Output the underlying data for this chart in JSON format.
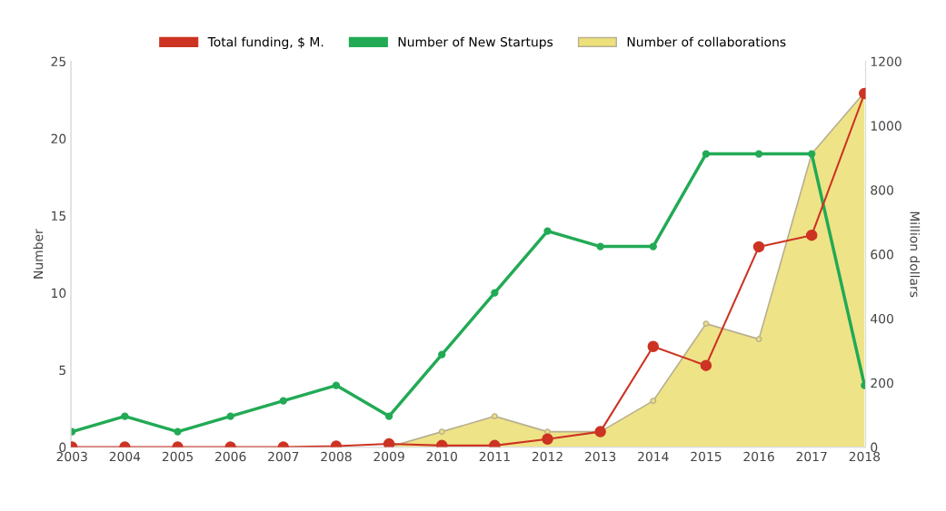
{
  "chart_data": {
    "type": "line",
    "categories": [
      "2003",
      "2004",
      "2005",
      "2006",
      "2007",
      "2008",
      "2009",
      "2010",
      "2011",
      "2012",
      "2013",
      "2014",
      "2015",
      "2016",
      "2017",
      "2018"
    ],
    "ylabel": "Number",
    "y2label": "Million dollars",
    "ylim": [
      0,
      25
    ],
    "yticks": [
      0,
      5,
      10,
      15,
      20,
      25
    ],
    "y2lim": [
      0,
      1200
    ],
    "y2ticks": [
      0,
      200,
      400,
      600,
      800,
      1000,
      1200
    ],
    "marker": "circle",
    "legend": "top",
    "grid": false,
    "series": [
      {
        "name": "Total funding, $ M.",
        "color": "#cc3322",
        "axis": "y2",
        "values": [
          0,
          0,
          0,
          0,
          0,
          3,
          10,
          5,
          5,
          25,
          48,
          313,
          254,
          623,
          659,
          1100
        ]
      },
      {
        "name": "Number of New Startups",
        "color": "#22aa55",
        "values": [
          1,
          2,
          1,
          2,
          3,
          4,
          2,
          6,
          10,
          14,
          13,
          13,
          19,
          19,
          19,
          4
        ]
      },
      {
        "name": "Number of collaborations",
        "color": "#ede07a",
        "type": "area",
        "values": [
          null,
          null,
          null,
          null,
          null,
          null,
          0,
          1,
          2,
          1,
          1,
          3,
          8,
          7,
          19,
          23
        ]
      }
    ]
  }
}
